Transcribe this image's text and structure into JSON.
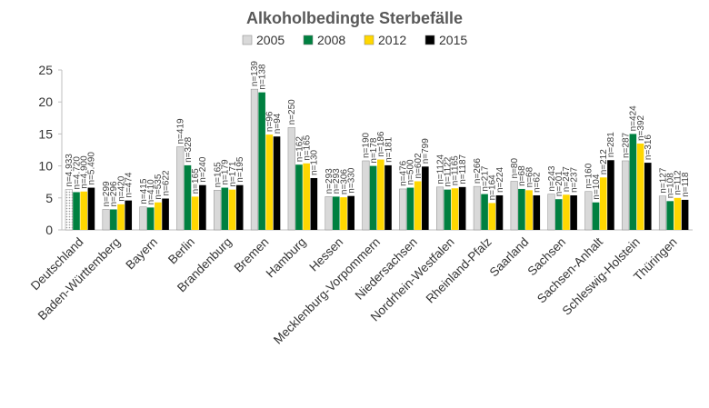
{
  "chart_data": {
    "type": "bar",
    "title": "Alkoholbedingte Sterbefälle",
    "xlabel": "",
    "ylabel": "",
    "ylim": [
      0,
      25
    ],
    "yticks": [
      "0",
      "5",
      "10",
      "15",
      "20",
      "25"
    ],
    "grid": false,
    "legend_position": "top",
    "categories": [
      "Deutschland",
      "Baden-Württemberg",
      "Bayern",
      "Berlin",
      "Brandenburg",
      "Bremen",
      "Hamburg",
      "Hessen",
      "Mecklenburg-Vorpommern",
      "Niedersachsen",
      "Nordrhein-Westfalen",
      "Rheinland-Pfalz",
      "Saarland",
      "Sachsen",
      "Sachsen-Anhalt",
      "Schleswig-Holstein",
      "Thüringen"
    ],
    "series": [
      {
        "name": "2005",
        "color": "#d9d9d9",
        "values": [
          6.3,
          3.2,
          3.6,
          13.0,
          6.2,
          22.0,
          16.0,
          5.2,
          10.8,
          6.4,
          6.7,
          6.8,
          7.6,
          5.6,
          6.0,
          10.8,
          5.3
        ],
        "labels": [
          "n=4.933",
          "n=299",
          "n=415",
          "n=419",
          "n=165",
          "n=139",
          "n=250",
          "n=293",
          "n=190",
          "n=476",
          "n=1124",
          "n=266",
          "n=80",
          "n=243",
          "n=160",
          "n=287",
          "n=127"
        ]
      },
      {
        "name": "2008",
        "color": "#008040",
        "values": [
          5.9,
          3.2,
          3.5,
          10.1,
          6.6,
          21.5,
          10.2,
          5.2,
          10.0,
          6.6,
          6.3,
          5.6,
          6.4,
          4.8,
          4.3,
          15.0,
          4.5
        ],
        "labels": [
          "n=4.720",
          "n=296",
          "n=410",
          "n=328",
          "n=179",
          "n=138",
          "n=162",
          "n=293",
          "n=178",
          "n=500",
          "n=1122",
          "n=217",
          "n=68",
          "n=201",
          "n=104",
          "n=424",
          "n=108"
        ]
      },
      {
        "name": "2012",
        "color": "#ffd700",
        "values": [
          6.0,
          4.0,
          4.3,
          5.2,
          6.3,
          14.9,
          10.4,
          5.1,
          11.0,
          7.6,
          6.5,
          4.2,
          6.2,
          5.5,
          8.2,
          13.5,
          5.0
        ],
        "labels": [
          "n=4.900",
          "n=420",
          "n=535",
          "n=165",
          "n=171",
          "n=96",
          "n=165",
          "n=306",
          "n=186",
          "n=602",
          "n=1165",
          "n=164",
          "n=68",
          "n=247",
          "n=212",
          "n=392",
          "n=112"
        ]
      },
      {
        "name": "2015",
        "color": "#000000",
        "values": [
          6.6,
          4.6,
          4.9,
          7.0,
          7.0,
          14.6,
          8.1,
          5.3,
          10.1,
          9.9,
          6.7,
          5.4,
          5.4,
          5.4,
          10.9,
          10.5,
          4.7
        ],
        "labels": [
          "n=5.490",
          "n=474",
          "n=622",
          "n=240",
          "n=195",
          "n=94",
          "n=130",
          "n=330",
          "n=181",
          "n=799",
          "n=1187",
          "n=224",
          "n=62",
          "n=237",
          "n=281",
          "n=316",
          "n=118"
        ]
      }
    ]
  }
}
